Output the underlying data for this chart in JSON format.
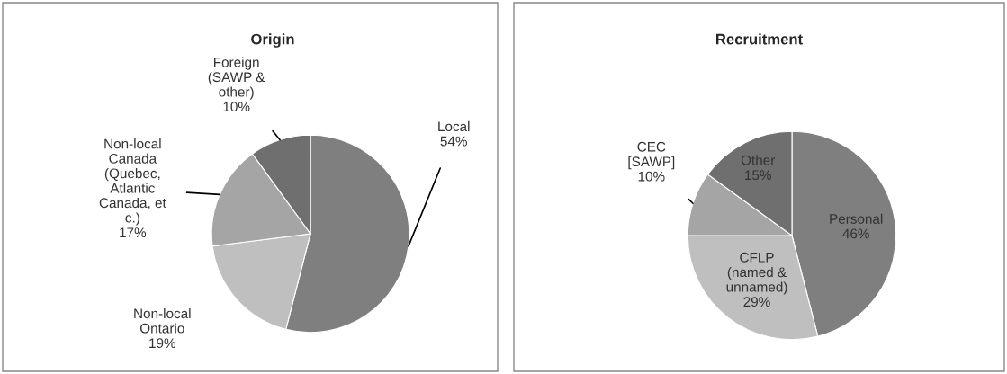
{
  "chart_data": [
    {
      "type": "pie",
      "title": "Origin",
      "categories": [
        "Local",
        "Non-local\nOntario",
        "Non-local\nCanada\n(Quebec,\nAtlantic\nCanada, et\nc.)",
        "Foreign\n(SAWP &\nother)"
      ],
      "values": [
        54,
        19,
        17,
        10
      ],
      "value_labels": [
        "54%",
        "19%",
        "17%",
        "10%"
      ],
      "colors": [
        "#7f7f7f",
        "#bfbfbf",
        "#a5a5a5",
        "#6f6f6f"
      ]
    },
    {
      "type": "pie",
      "title": "Recruitment",
      "categories": [
        "Personal",
        "CFLP\n(named &\nunnamed)",
        "CEC\n[SAWP]",
        "Other"
      ],
      "values": [
        46,
        29,
        10,
        15
      ],
      "value_labels": [
        "46%",
        "29%",
        "10%",
        "15%"
      ],
      "colors": [
        "#7f7f7f",
        "#bfbfbf",
        "#a5a5a5",
        "#6f6f6f"
      ]
    }
  ]
}
